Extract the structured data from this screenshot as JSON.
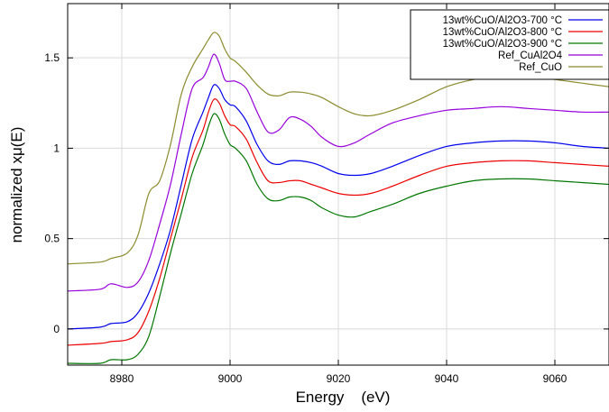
{
  "chart_data": {
    "type": "line",
    "title": "",
    "xlabel": "Energy    (eV)",
    "ylabel": "normalized xμ(E)",
    "xlim": [
      8970,
      9070
    ],
    "ylim": [
      -0.2,
      1.8
    ],
    "xticks": [
      8980,
      9000,
      9020,
      9040,
      9060
    ],
    "yticks": [
      0,
      0.5,
      1,
      1.5
    ],
    "xtick_labels": [
      "8980",
      "9000",
      "9020",
      "9040",
      "9060"
    ],
    "ytick_labels": [
      "0",
      "0.5",
      "1",
      "1.5"
    ],
    "grid": true,
    "legend_position": "top-right",
    "series": [
      {
        "name": "13wt%CuO/Al2O3-700 °C",
        "color": "#0000ee",
        "points": [
          [
            8970,
            0.0
          ],
          [
            8976,
            0.01
          ],
          [
            8978,
            0.03
          ],
          [
            8981,
            0.04
          ],
          [
            8983,
            0.09
          ],
          [
            8985,
            0.2
          ],
          [
            8987,
            0.36
          ],
          [
            8989,
            0.55
          ],
          [
            8991,
            0.8
          ],
          [
            8993,
            1.05
          ],
          [
            8995,
            1.2
          ],
          [
            8996,
            1.28
          ],
          [
            8997,
            1.35
          ],
          [
            8998,
            1.33
          ],
          [
            8999,
            1.27
          ],
          [
            9000,
            1.24
          ],
          [
            9001,
            1.23
          ],
          [
            9003,
            1.15
          ],
          [
            9005,
            1.02
          ],
          [
            9007,
            0.93
          ],
          [
            9009,
            0.91
          ],
          [
            9011,
            0.93
          ],
          [
            9013,
            0.93
          ],
          [
            9015,
            0.92
          ],
          [
            9017,
            0.9
          ],
          [
            9020,
            0.86
          ],
          [
            9023,
            0.85
          ],
          [
            9026,
            0.86
          ],
          [
            9030,
            0.9
          ],
          [
            9035,
            0.96
          ],
          [
            9040,
            1.01
          ],
          [
            9045,
            1.03
          ],
          [
            9050,
            1.04
          ],
          [
            9055,
            1.04
          ],
          [
            9060,
            1.03
          ],
          [
            9065,
            1.01
          ],
          [
            9070,
            1.0
          ]
        ]
      },
      {
        "name": "13wt%CuO/Al2O3-800 °C",
        "color": "#ee0000",
        "points": [
          [
            8970,
            -0.09
          ],
          [
            8976,
            -0.08
          ],
          [
            8978,
            -0.07
          ],
          [
            8981,
            -0.06
          ],
          [
            8983,
            -0.02
          ],
          [
            8985,
            0.1
          ],
          [
            8987,
            0.28
          ],
          [
            8989,
            0.5
          ],
          [
            8991,
            0.72
          ],
          [
            8993,
            0.95
          ],
          [
            8995,
            1.1
          ],
          [
            8996,
            1.2
          ],
          [
            8997,
            1.27
          ],
          [
            8998,
            1.25
          ],
          [
            8999,
            1.18
          ],
          [
            9000,
            1.13
          ],
          [
            9001,
            1.12
          ],
          [
            9003,
            1.05
          ],
          [
            9005,
            0.92
          ],
          [
            9007,
            0.82
          ],
          [
            9009,
            0.81
          ],
          [
            9011,
            0.82
          ],
          [
            9013,
            0.82
          ],
          [
            9015,
            0.8
          ],
          [
            9017,
            0.78
          ],
          [
            9020,
            0.75
          ],
          [
            9023,
            0.74
          ],
          [
            9026,
            0.75
          ],
          [
            9030,
            0.79
          ],
          [
            9035,
            0.85
          ],
          [
            9040,
            0.9
          ],
          [
            9045,
            0.92
          ],
          [
            9050,
            0.93
          ],
          [
            9055,
            0.93
          ],
          [
            9060,
            0.92
          ],
          [
            9065,
            0.91
          ],
          [
            9070,
            0.9
          ]
        ]
      },
      {
        "name": "13wt%CuO/Al2O3-900 °C",
        "color": "#007700",
        "points": [
          [
            8970,
            -0.19
          ],
          [
            8976,
            -0.19
          ],
          [
            8978,
            -0.17
          ],
          [
            8981,
            -0.17
          ],
          [
            8983,
            -0.14
          ],
          [
            8985,
            -0.04
          ],
          [
            8987,
            0.18
          ],
          [
            8989,
            0.42
          ],
          [
            8991,
            0.64
          ],
          [
            8993,
            0.86
          ],
          [
            8995,
            1.02
          ],
          [
            8996,
            1.12
          ],
          [
            8997,
            1.19
          ],
          [
            8998,
            1.16
          ],
          [
            8999,
            1.08
          ],
          [
            9000,
            1.02
          ],
          [
            9001,
            1.0
          ],
          [
            9003,
            0.93
          ],
          [
            9005,
            0.8
          ],
          [
            9007,
            0.72
          ],
          [
            9009,
            0.71
          ],
          [
            9011,
            0.73
          ],
          [
            9013,
            0.73
          ],
          [
            9015,
            0.71
          ],
          [
            9017,
            0.67
          ],
          [
            9020,
            0.63
          ],
          [
            9023,
            0.62
          ],
          [
            9026,
            0.65
          ],
          [
            9030,
            0.69
          ],
          [
            9035,
            0.75
          ],
          [
            9040,
            0.79
          ],
          [
            9045,
            0.82
          ],
          [
            9050,
            0.83
          ],
          [
            9055,
            0.83
          ],
          [
            9060,
            0.82
          ],
          [
            9065,
            0.81
          ],
          [
            9070,
            0.8
          ]
        ]
      },
      {
        "name": "Ref_CuAl2O4",
        "color": "#9900dd",
        "points": [
          [
            8970,
            0.21
          ],
          [
            8976,
            0.22
          ],
          [
            8978,
            0.25
          ],
          [
            8981,
            0.23
          ],
          [
            8983,
            0.26
          ],
          [
            8985,
            0.38
          ],
          [
            8987,
            0.58
          ],
          [
            8989,
            0.8
          ],
          [
            8991,
            1.08
          ],
          [
            8993,
            1.33
          ],
          [
            8995,
            1.39
          ],
          [
            8996,
            1.45
          ],
          [
            8997,
            1.52
          ],
          [
            8998,
            1.47
          ],
          [
            8999,
            1.38
          ],
          [
            9000,
            1.37
          ],
          [
            9001,
            1.37
          ],
          [
            9003,
            1.33
          ],
          [
            9005,
            1.2
          ],
          [
            9007,
            1.09
          ],
          [
            9009,
            1.1
          ],
          [
            9011,
            1.17
          ],
          [
            9013,
            1.16
          ],
          [
            9015,
            1.12
          ],
          [
            9017,
            1.06
          ],
          [
            9020,
            1.01
          ],
          [
            9023,
            1.03
          ],
          [
            9026,
            1.08
          ],
          [
            9030,
            1.14
          ],
          [
            9035,
            1.18
          ],
          [
            9040,
            1.21
          ],
          [
            9045,
            1.22
          ],
          [
            9050,
            1.23
          ],
          [
            9055,
            1.22
          ],
          [
            9060,
            1.21
          ],
          [
            9065,
            1.2
          ],
          [
            9070,
            1.2
          ]
        ]
      },
      {
        "name": "Ref_CuO",
        "color": "#8b8b2e",
        "points": [
          [
            8970,
            0.36
          ],
          [
            8976,
            0.37
          ],
          [
            8978,
            0.39
          ],
          [
            8981,
            0.42
          ],
          [
            8983,
            0.52
          ],
          [
            8985,
            0.75
          ],
          [
            8987,
            0.82
          ],
          [
            8989,
            1.02
          ],
          [
            8991,
            1.3
          ],
          [
            8993,
            1.45
          ],
          [
            8995,
            1.55
          ],
          [
            8996,
            1.6
          ],
          [
            8997,
            1.64
          ],
          [
            8998,
            1.62
          ],
          [
            8999,
            1.55
          ],
          [
            9000,
            1.5
          ],
          [
            9001,
            1.48
          ],
          [
            9003,
            1.42
          ],
          [
            9005,
            1.35
          ],
          [
            9007,
            1.3
          ],
          [
            9009,
            1.29
          ],
          [
            9011,
            1.31
          ],
          [
            9013,
            1.31
          ],
          [
            9015,
            1.3
          ],
          [
            9017,
            1.28
          ],
          [
            9020,
            1.23
          ],
          [
            9023,
            1.19
          ],
          [
            9026,
            1.18
          ],
          [
            9030,
            1.21
          ],
          [
            9035,
            1.27
          ],
          [
            9040,
            1.34
          ],
          [
            9045,
            1.38
          ],
          [
            9050,
            1.4
          ],
          [
            9055,
            1.4
          ],
          [
            9060,
            1.38
          ],
          [
            9065,
            1.36
          ],
          [
            9070,
            1.34
          ]
        ]
      }
    ]
  }
}
